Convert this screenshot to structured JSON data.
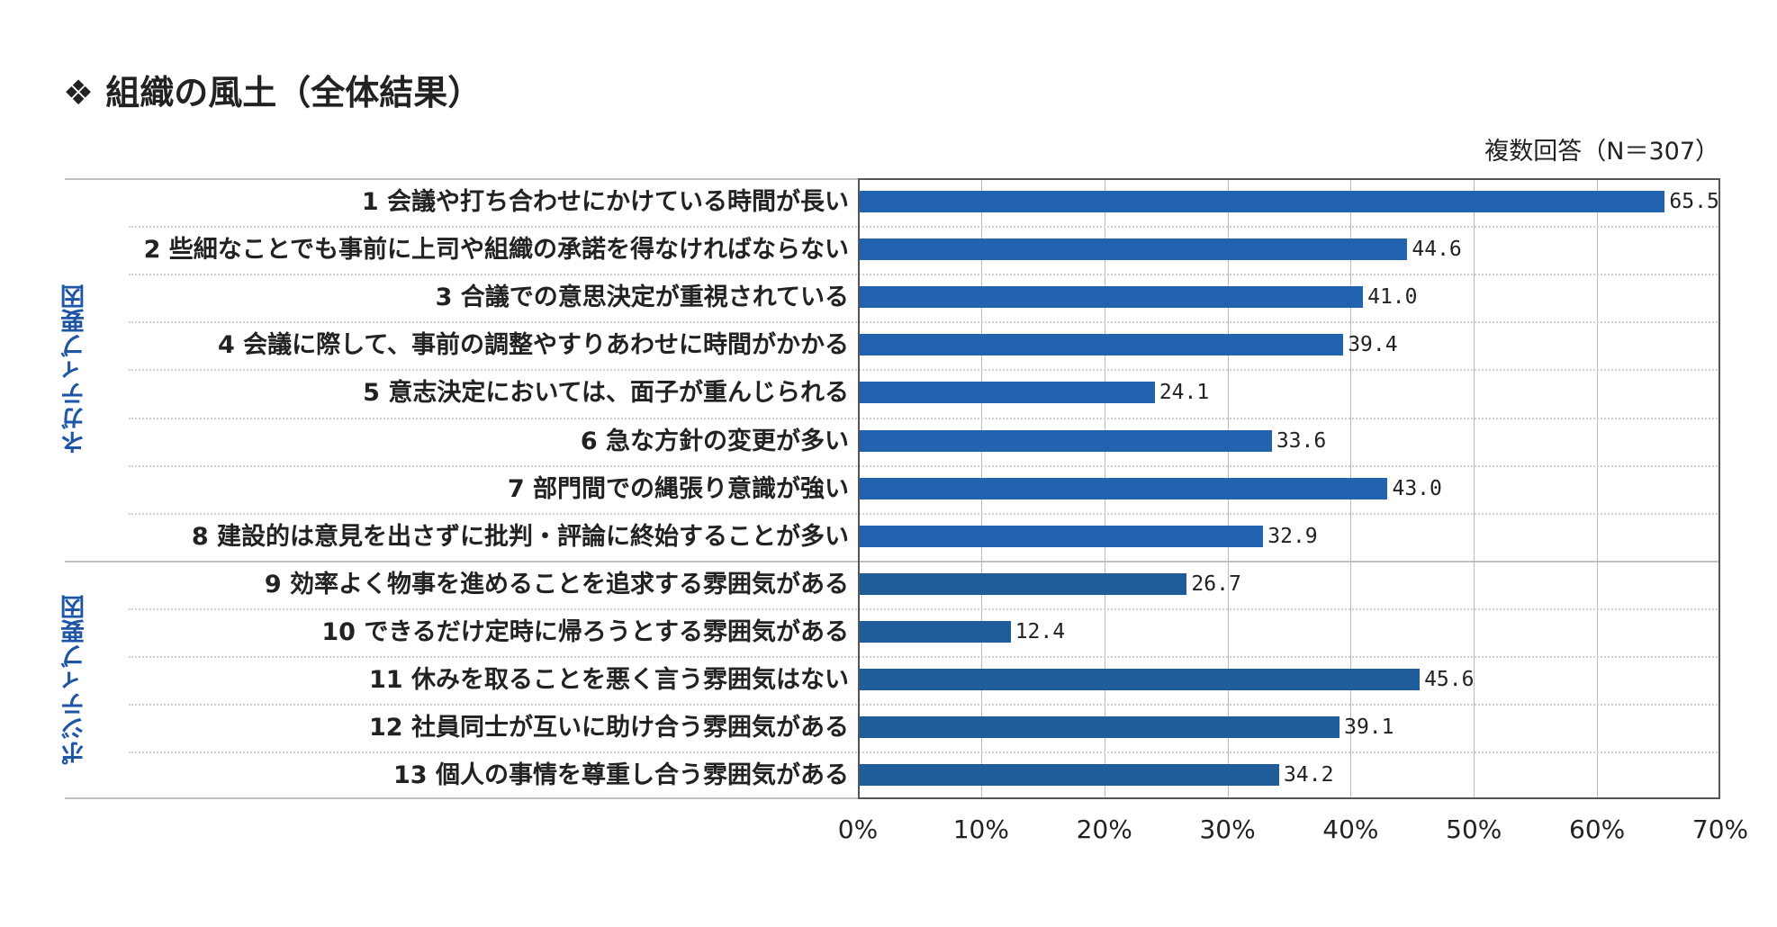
{
  "chart_data": {
    "type": "bar",
    "orientation": "horizontal",
    "title": "❖ 組織の風土（全体結果）",
    "note": "複数回答（N＝307）",
    "xlabel": "",
    "ylabel": "",
    "xlim": [
      0,
      70
    ],
    "xticks": [
      "0%",
      "10%",
      "20%",
      "30%",
      "40%",
      "50%",
      "60%",
      "70%"
    ],
    "groups": [
      {
        "name": "ネガティブ要因",
        "color": "#2263b0",
        "range": [
          0,
          7
        ]
      },
      {
        "name": "ポジティブ要因",
        "color": "#1f5c9a",
        "range": [
          8,
          12
        ]
      }
    ],
    "categories": [
      "1 会議や打ち合わせにかけている時間が長い",
      "2 些細なことでも事前に上司や組織の承諾を得なければならない",
      "3 合議での意思決定が重視されている",
      "4 会議に際して、事前の調整やすりあわせに時間がかかる",
      "5 意志決定においては、面子が重んじられる",
      "6 急な方針の変更が多い",
      "7 部門間での縄張り意識が強い",
      "8 建設的は意見を出さずに批判・評論に終始することが多い",
      "9 効率よく物事を進めることを追求する雰囲気がある",
      "10 できるだけ定時に帰ろうとする雰囲気がある",
      "11 休みを取ることを悪く言う雰囲気はない",
      "12 社員同士が互いに助け合う雰囲気がある",
      "13 個人の事情を尊重し合う雰囲気がある"
    ],
    "values": [
      65.5,
      44.6,
      41.0,
      39.4,
      24.1,
      33.6,
      43.0,
      32.9,
      26.7,
      12.4,
      45.6,
      39.1,
      34.2
    ],
    "value_labels": [
      "65.5",
      "44.6",
      "41.0",
      "39.4",
      "24.1",
      "33.6",
      "43.0",
      "32.9",
      "26.7",
      "12.4",
      "45.6",
      "39.1",
      "34.2"
    ],
    "grid": true
  }
}
